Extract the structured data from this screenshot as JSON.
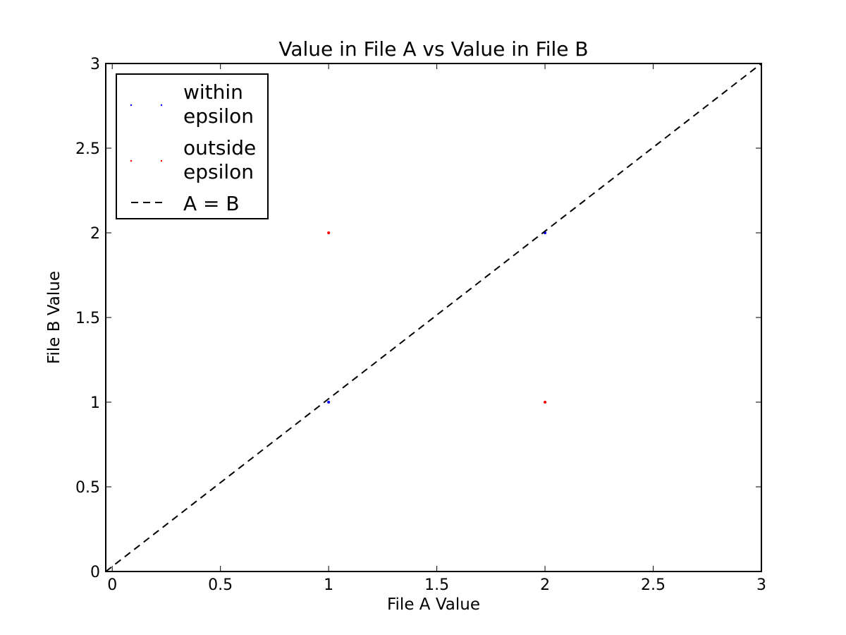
{
  "chart_data": {
    "type": "scatter",
    "title": "Value in File A vs Value in File B",
    "xlabel": "File A Value",
    "ylabel": "File B Value",
    "xlim": [
      -0.03,
      3.0
    ],
    "ylim": [
      0,
      3
    ],
    "xticks": [
      0,
      0.5,
      1,
      1.5,
      2,
      2.5,
      3
    ],
    "xtick_labels": [
      "0",
      "0.5",
      "1",
      "1.5",
      "2",
      "2.5",
      "3"
    ],
    "yticks": [
      0,
      0.5,
      1,
      1.5,
      2,
      2.5,
      3
    ],
    "ytick_labels": [
      "0",
      "0.5",
      "1",
      "1.5",
      "2",
      "2.5",
      "3"
    ],
    "grid": false,
    "legend_position": "top-left",
    "series": [
      {
        "name": "within epsilon",
        "legend_lines": [
          "within",
          "epsilon"
        ],
        "kind": "points",
        "color": "#0000ff",
        "points": [
          {
            "x": 1,
            "y": 1
          },
          {
            "x": 2,
            "y": 2
          }
        ]
      },
      {
        "name": "outside epsilon",
        "legend_lines": [
          "outside",
          "epsilon"
        ],
        "kind": "points",
        "color": "#ff0000",
        "points": [
          {
            "x": 1,
            "y": 2
          },
          {
            "x": 2,
            "y": 1
          }
        ]
      },
      {
        "name": "A = B",
        "legend_lines": [
          "A = B"
        ],
        "kind": "dashed-line",
        "color": "#000000",
        "points": [
          {
            "x": -0.03,
            "y": 0
          },
          {
            "x": 3.0,
            "y": 3.0
          }
        ]
      }
    ]
  }
}
